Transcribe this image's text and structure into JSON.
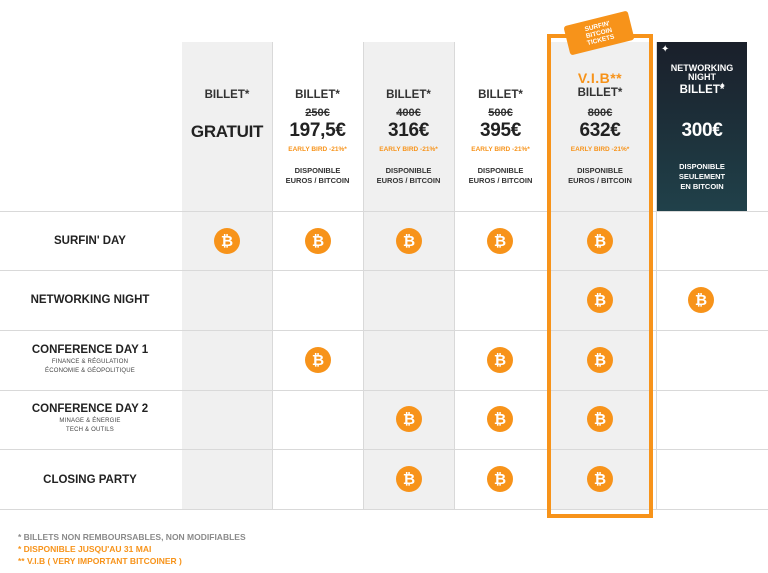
{
  "tickets": [
    {
      "id": "gratuit",
      "label": "BILLET*",
      "old_price": "",
      "price": "GRATUIT",
      "early_bird": "",
      "availability": [
        "",
        ""
      ]
    },
    {
      "id": "day",
      "label": "BILLET*",
      "old_price": "250€",
      "price": "197,5€",
      "early_bird": "EARLY BIRD -21%*",
      "availability": [
        "DISPONIBLE",
        "EUROS / BITCOIN"
      ]
    },
    {
      "id": "party",
      "label": "BILLET*",
      "old_price": "400€",
      "price": "316€",
      "early_bird": "EARLY BIRD -21%*",
      "availability": [
        "DISPONIBLE",
        "EUROS / BITCOIN"
      ]
    },
    {
      "id": "conf",
      "label": "BILLET*",
      "old_price": "500€",
      "price": "395€",
      "early_bird": "EARLY BIRD -21%*",
      "availability": [
        "DISPONIBLE",
        "EUROS / BITCOIN"
      ]
    },
    {
      "id": "vib",
      "vib_title": "V.I.B**",
      "label": "BILLET*",
      "old_price": "800€",
      "price": "632€",
      "early_bird": "EARLY BIRD -21%*",
      "availability": [
        "DISPONIBLE",
        "EUROS / BITCOIN"
      ]
    },
    {
      "id": "networking",
      "title_lines": [
        "NETWORKING",
        "NIGHT"
      ],
      "label": "BILLET*",
      "price": "300€",
      "availability": [
        "DISPONIBLE",
        "SEULEMENT",
        "EN BITCOIN"
      ]
    }
  ],
  "ticket_badge": [
    "SURFIN'",
    "BITCOIN",
    "TICKETS"
  ],
  "rows": [
    {
      "title": "SURFIN' DAY",
      "subtitle": []
    },
    {
      "title": "NETWORKING NIGHT",
      "subtitle": []
    },
    {
      "title": "CONFERENCE DAY 1",
      "subtitle": [
        "FINANCE & RÉGULATION",
        "ÉCONOMIE & GÉOPOLITIQUE"
      ]
    },
    {
      "title": "CONFERENCE DAY 2",
      "subtitle": [
        "MINAGE & ÉNERGIE",
        "TECH & OUTILS"
      ]
    },
    {
      "title": "CLOSING PARTY",
      "subtitle": []
    }
  ],
  "coin_symbol": "₿",
  "footer": {
    "line1": "* BILLETS NON REMBOURSABLES, NON MODIFIABLES",
    "line2": "* DISPONIBLE JUSQU'AU 31 MAI",
    "line3": "** V.I.B ( VERY IMPORTANT BITCOINER )"
  },
  "colors": {
    "accent": "#f7931a",
    "dark": "#1a1f2a"
  }
}
